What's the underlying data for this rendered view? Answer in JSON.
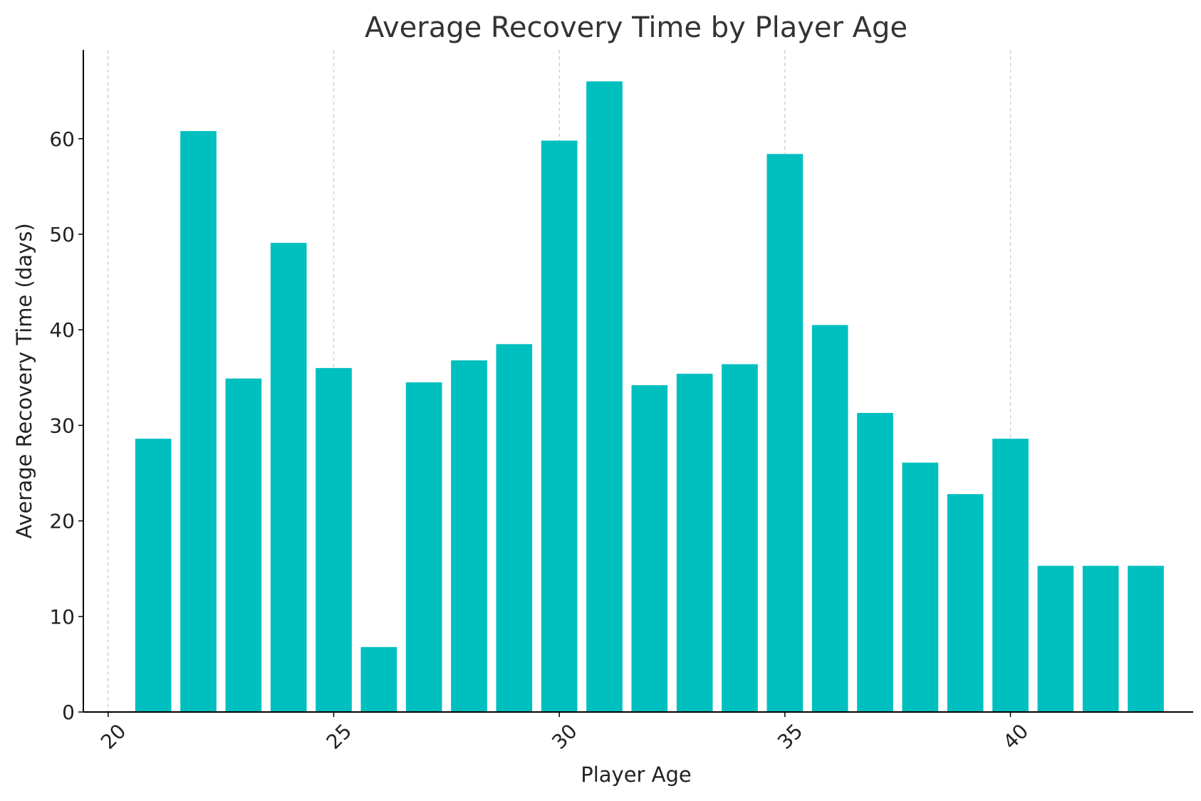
{
  "chart_data": {
    "type": "bar",
    "title": "Average Recovery Time by Player Age",
    "xlabel": "Player Age",
    "ylabel": "Average Recovery Time (days)",
    "x": [
      21,
      22,
      23,
      24,
      25,
      26,
      27,
      28,
      29,
      30,
      31,
      32,
      33,
      34,
      35,
      36,
      37,
      38,
      39,
      40,
      41,
      42,
      43
    ],
    "values": [
      28.6,
      60.8,
      34.9,
      49.1,
      36.0,
      6.8,
      34.5,
      36.8,
      38.5,
      59.8,
      66.0,
      34.2,
      35.4,
      36.4,
      58.4,
      40.5,
      31.3,
      26.1,
      22.8,
      28.6,
      15.3,
      15.3,
      15.3
    ],
    "xlim": [
      19.45,
      44.05
    ],
    "ylim": [
      0,
      69.3
    ],
    "xticks": [
      20,
      25,
      30,
      35,
      40
    ],
    "yticks": [
      0,
      10,
      20,
      30,
      40,
      50,
      60
    ],
    "grid": "vertical dashed",
    "bar_color": "#00BFBF",
    "grid_color": "#cccccc",
    "axis_color": "#000000",
    "text_color": "#333333"
  }
}
